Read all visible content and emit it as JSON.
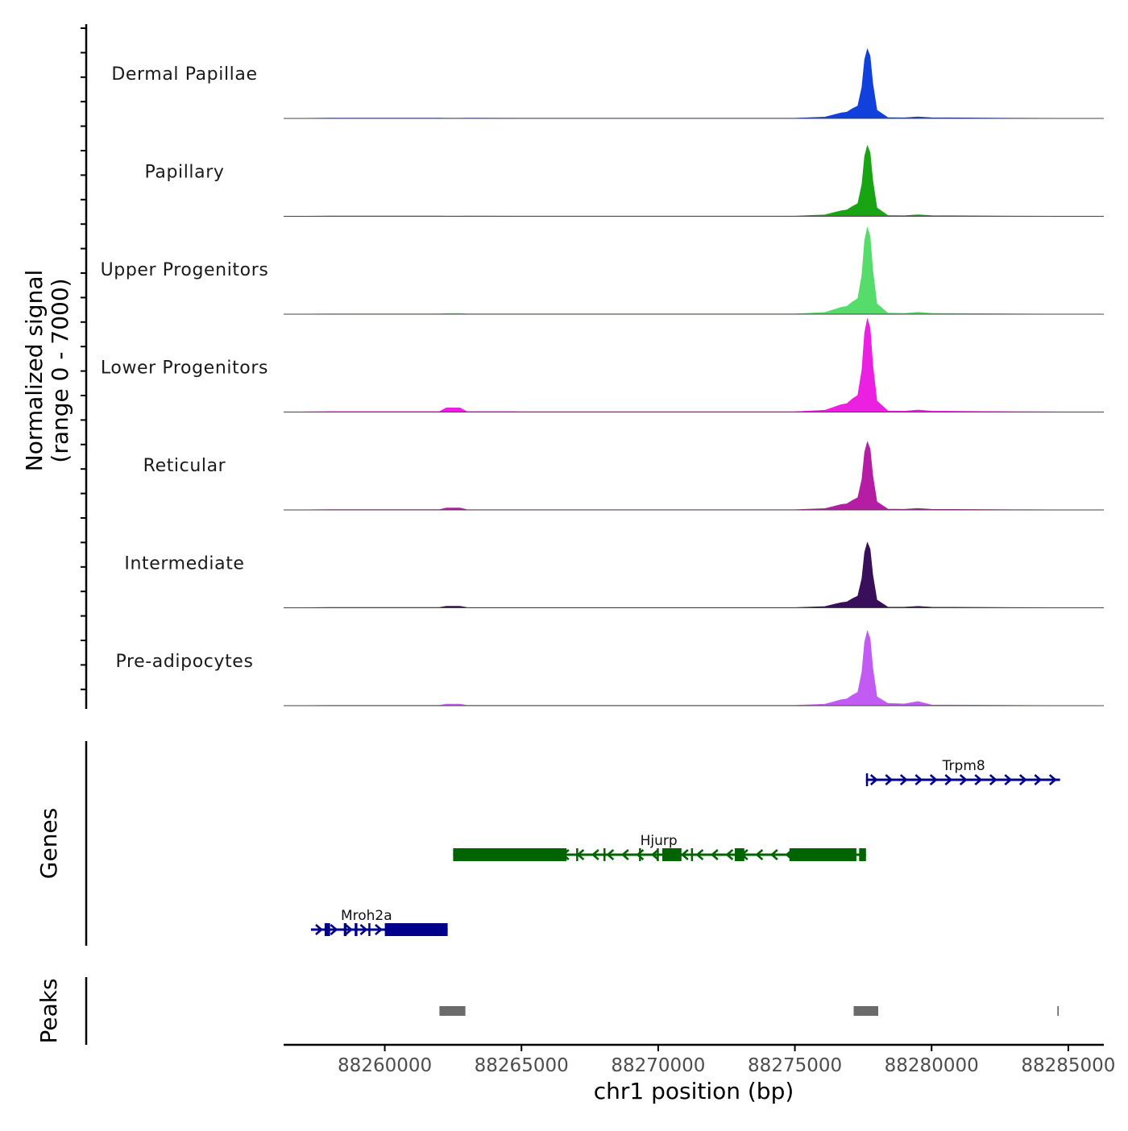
{
  "chart_data": {
    "type": "area",
    "title": "",
    "ylabel_line1": "Normalized signal",
    "ylabel_line2": "(range 0 - 7000)",
    "xlabel": "chr1 position (bp)",
    "ylim": [
      0,
      7000
    ],
    "xlim": [
      88256300,
      88286300
    ],
    "x_ticks": [
      88260000,
      88265000,
      88270000,
      88275000,
      88280000,
      88285000
    ],
    "x_tick_labels": [
      "88260000",
      "88265000",
      "88270000",
      "88275000",
      "88280000",
      "88285000"
    ],
    "signal_peak_profile": {
      "x": [
        88256300,
        88258000,
        88260000,
        88262000,
        88262250,
        88262500,
        88262750,
        88263000,
        88265000,
        88270000,
        88275000,
        88276100,
        88276500,
        88276700,
        88276900,
        88277100,
        88277300,
        88277450,
        88277550,
        88277650,
        88277750,
        88277850,
        88278000,
        88278400,
        88279000,
        88279500,
        88280000,
        88283000,
        88286300
      ],
      "shape": [
        0,
        0.005,
        0.005,
        0.005,
        0.02,
        0.035,
        0.02,
        0.005,
        0.004,
        0.004,
        0.004,
        0.02,
        0.06,
        0.08,
        0.09,
        0.14,
        0.18,
        0.45,
        0.85,
        1.0,
        0.9,
        0.5,
        0.12,
        0.02,
        0.015,
        0.035,
        0.01,
        0.004,
        0
      ]
    },
    "series": [
      {
        "name": "Dermal Papillae",
        "color": "#1141dc",
        "peak": 5200,
        "secondary": 0.004,
        "local": 0.012,
        "x": [],
        "values": []
      },
      {
        "name": "Papillary",
        "color": "#19a513",
        "peak": 5300,
        "secondary": 0.004,
        "local": 0.012,
        "x": [],
        "values": []
      },
      {
        "name": "Upper Progenitors",
        "color": "#55dc6a",
        "peak": 6500,
        "secondary": 0.008,
        "local": 0.012,
        "x": [],
        "values": []
      },
      {
        "name": "Lower Progenitors",
        "color": "#ec20e1",
        "peak": 7000,
        "secondary": 0.045,
        "local": 0.012,
        "x": [],
        "values": []
      },
      {
        "name": "Reticular",
        "color": "#b51ea4",
        "peak": 5100,
        "secondary": 0.03,
        "local": 0.012,
        "x": [],
        "values": []
      },
      {
        "name": "Intermediate",
        "color": "#390e5a",
        "peak": 4900,
        "secondary": 0.025,
        "local": 0.012,
        "x": [],
        "values": []
      },
      {
        "name": "Pre-adipocytes",
        "color": "#c25bf3",
        "peak": 5600,
        "secondary": 0.02,
        "local": 0.045,
        "x": [],
        "values": []
      }
    ],
    "genes_label": "Genes",
    "genes": [
      {
        "name": "Trpm8",
        "start": 88277600,
        "end": 88284700,
        "strand": "+",
        "color": "#00008b",
        "row": 0,
        "exons": [
          [
            88277600,
            88277650
          ]
        ]
      },
      {
        "name": "Hjurp",
        "start": 88262500,
        "end": 88277600,
        "strand": "-",
        "color": "#006400",
        "row": 1,
        "exons": [
          [
            88262500,
            88266650
          ],
          [
            88267000,
            88267050
          ],
          [
            88268000,
            88268050
          ],
          [
            88269300,
            88269350
          ],
          [
            88269950,
            88270000
          ],
          [
            88270150,
            88270850
          ],
          [
            88271200,
            88271250
          ],
          [
            88272800,
            88273150
          ],
          [
            88274800,
            88277250
          ],
          [
            88277350,
            88277600
          ]
        ]
      },
      {
        "name": "Mroh2a",
        "start": 88257300,
        "end": 88262300,
        "strand": "+",
        "color": "#00008b",
        "row": 2,
        "exons": [
          [
            88257800,
            88258000
          ],
          [
            88258500,
            88258600
          ],
          [
            88258900,
            88259000
          ],
          [
            88259400,
            88259450
          ],
          [
            88260000,
            88262300
          ]
        ]
      }
    ],
    "peaks_label": "Peaks",
    "peaks": [
      [
        88262000,
        88262950
      ],
      [
        88277150,
        88278050
      ],
      [
        88284600,
        88284650
      ]
    ],
    "peak_color": "#6b6b6b"
  }
}
